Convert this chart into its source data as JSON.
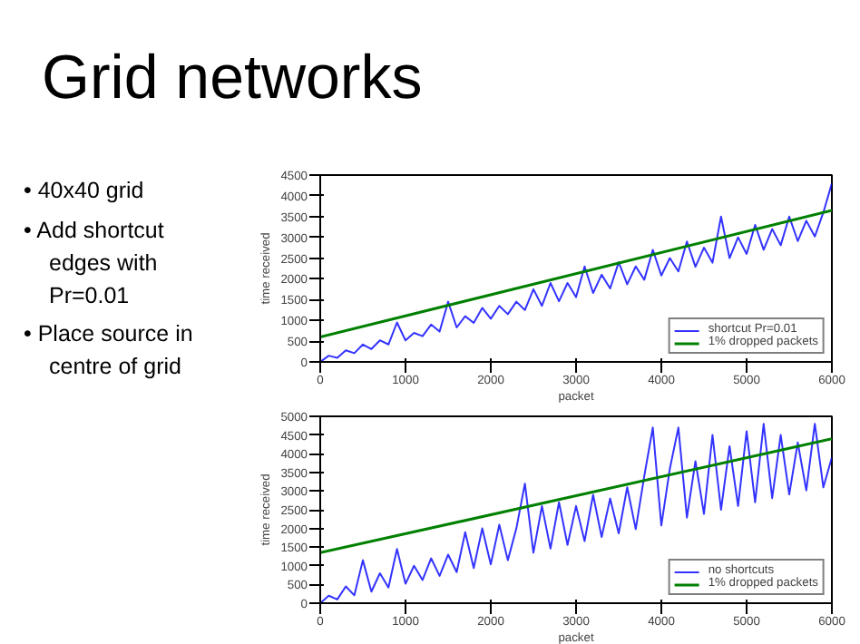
{
  "chart_data": [
    {
      "type": "line",
      "title": "Grid networks",
      "annotations": [
        "• 40x40 grid",
        "• Add shortcut edges with Pr=0.01",
        "• Place source in centre of grid"
      ],
      "xlabel": "packet",
      "ylabel": "time received",
      "xlim": [
        0,
        6000
      ],
      "xticks": [
        0,
        1000,
        2000,
        3000,
        4000,
        5000,
        6000
      ],
      "ylim": [
        0,
        4500
      ],
      "yticks": [
        0,
        500,
        1000,
        1500,
        2000,
        2500,
        3000,
        3500,
        4000,
        4500
      ],
      "grid": false,
      "legend": "bottom right",
      "series": [
        {
          "name": "shortcut Pr=0.01",
          "color": "#0000ff",
          "x": [
            0,
            100,
            200,
            300,
            400,
            500,
            600,
            700,
            800,
            900,
            1000,
            1100,
            1200,
            1300,
            1400,
            1500,
            1600,
            1700,
            1800,
            1900,
            2000,
            2100,
            2200,
            2300,
            2400,
            2500,
            2600,
            2700,
            2800,
            2900,
            3000,
            3100,
            3200,
            3300,
            3400,
            3500,
            3600,
            3700,
            3800,
            3900,
            4000,
            4100,
            4200,
            4300,
            4400,
            4500,
            4600,
            4700,
            4800,
            4900,
            5000,
            5100,
            5200,
            5300,
            5400,
            5500,
            5600,
            5700,
            5800,
            5900,
            6000
          ],
          "values": [
            0,
            150,
            100,
            280,
            210,
            420,
            310,
            520,
            420,
            950,
            520,
            700,
            620,
            900,
            730,
            1450,
            830,
            1100,
            940,
            1300,
            1040,
            1350,
            1150,
            1450,
            1250,
            1750,
            1350,
            1900,
            1460,
            1900,
            1560,
            2300,
            1660,
            2100,
            1770,
            2400,
            1870,
            2300,
            1980,
            2700,
            2080,
            2500,
            2180,
            2900,
            2290,
            2750,
            2390,
            3500,
            2500,
            3000,
            2600,
            3300,
            2700,
            3200,
            2810,
            3500,
            2910,
            3400,
            3020,
            3600,
            4300
          ]
        },
        {
          "name": "1% dropped packets",
          "color": "#008000",
          "x": [
            0,
            6000
          ],
          "values": [
            600,
            3650
          ]
        }
      ]
    },
    {
      "type": "line",
      "xlabel": "packet",
      "ylabel": "time received",
      "xlim": [
        0,
        6000
      ],
      "xticks": [
        0,
        1000,
        2000,
        3000,
        4000,
        5000,
        6000
      ],
      "ylim": [
        0,
        5000
      ],
      "yticks": [
        0,
        500,
        1000,
        1500,
        2000,
        2500,
        3000,
        3500,
        4000,
        4500,
        5000
      ],
      "grid": false,
      "legend": "bottom right",
      "series": [
        {
          "name": "no shortcuts",
          "color": "#0000ff",
          "x": [
            0,
            100,
            200,
            300,
            400,
            500,
            600,
            700,
            800,
            900,
            1000,
            1100,
            1200,
            1300,
            1400,
            1500,
            1600,
            1700,
            1800,
            1900,
            2000,
            2100,
            2200,
            2300,
            2400,
            2500,
            2600,
            2700,
            2800,
            2900,
            3000,
            3100,
            3200,
            3300,
            3400,
            3500,
            3600,
            3700,
            3800,
            3900,
            4000,
            4100,
            4200,
            4300,
            4400,
            4500,
            4600,
            4700,
            4800,
            4900,
            5000,
            5100,
            5200,
            5300,
            5400,
            5500,
            5600,
            5700,
            5800,
            5900,
            6000
          ],
          "values": [
            0,
            200,
            100,
            450,
            210,
            1150,
            310,
            800,
            420,
            1450,
            520,
            1000,
            620,
            1200,
            730,
            1300,
            830,
            1900,
            940,
            2000,
            1040,
            2100,
            1150,
            2000,
            3200,
            1350,
            2600,
            1460,
            2700,
            1560,
            2600,
            1660,
            2900,
            1770,
            2800,
            1870,
            3100,
            1980,
            3400,
            4700,
            2080,
            3600,
            4700,
            2290,
            3800,
            2390,
            4500,
            2500,
            4200,
            2600,
            4600,
            2700,
            4800,
            2810,
            4500,
            2910,
            4300,
            3020,
            4800,
            3100,
            3900
          ]
        },
        {
          "name": "1% dropped packets",
          "color": "#008000",
          "x": [
            0,
            6000
          ],
          "values": [
            1350,
            4400
          ]
        }
      ]
    }
  ]
}
